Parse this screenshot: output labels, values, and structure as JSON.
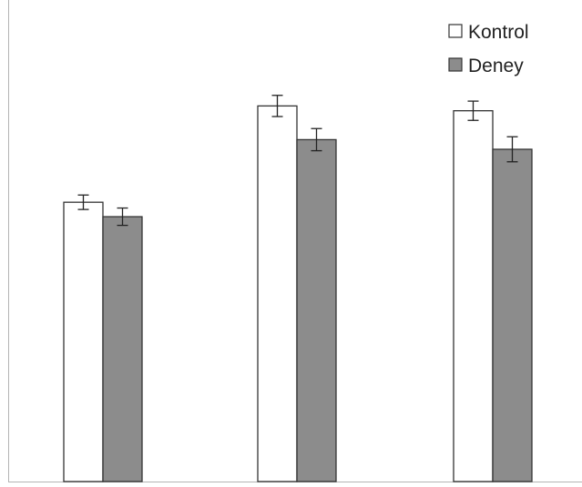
{
  "chart_data": {
    "type": "bar",
    "categories": [
      "",
      "",
      ""
    ],
    "series": [
      {
        "name": "Kontrol",
        "color": "#ffffff",
        "values": [
          58,
          78,
          77
        ],
        "errors": [
          1.5,
          2.2,
          2.0
        ]
      },
      {
        "name": "Deney",
        "color": "#8c8c8c",
        "values": [
          55,
          71,
          69
        ],
        "errors": [
          1.8,
          2.3,
          2.6
        ]
      }
    ],
    "title": "",
    "xlabel": "",
    "ylabel": "",
    "ylim": [
      0,
      100
    ],
    "grid": false,
    "legend": {
      "position": "top-right"
    }
  }
}
